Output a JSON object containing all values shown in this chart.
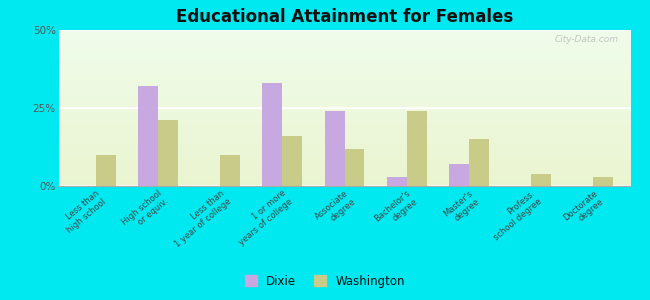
{
  "title": "Educational Attainment for Females",
  "categories": [
    "Less than\nhigh school",
    "High school\nor equiv.",
    "Less than\n1 year of college",
    "1 or more\nyears of college",
    "Associate\ndegree",
    "Bachelor's\ndegree",
    "Master's\ndegree",
    "Profess.\nschool degree",
    "Doctorate\ndegree"
  ],
  "dixie": [
    0.0,
    32.0,
    0.0,
    33.0,
    24.0,
    3.0,
    7.0,
    0.0,
    0.0
  ],
  "washington": [
    10.0,
    21.0,
    10.0,
    16.0,
    12.0,
    24.0,
    15.0,
    4.0,
    3.0
  ],
  "dixie_color": "#c8a8e0",
  "washington_color": "#c8cc88",
  "outer_bg": "#00e8f0",
  "plot_bg": "#eef8e8",
  "yticks": [
    0,
    25,
    50
  ],
  "ylim": [
    0,
    50
  ],
  "bar_width": 0.32,
  "legend_labels": [
    "Dixie",
    "Washington"
  ],
  "watermark": "City-Data.com"
}
